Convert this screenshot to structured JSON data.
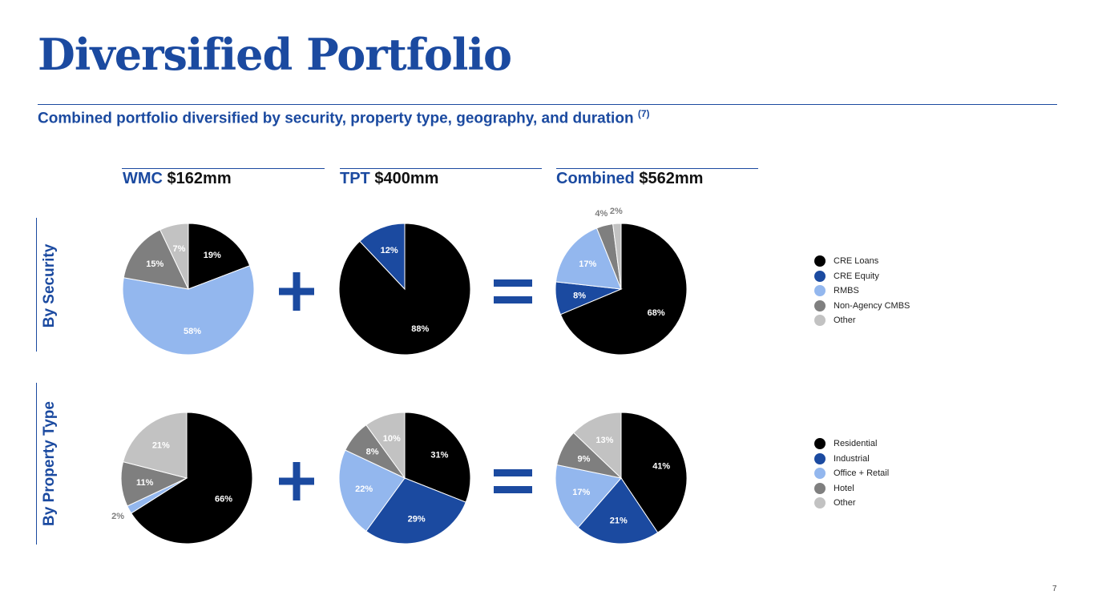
{
  "title": "Diversified Portfolio",
  "subtitle": "Combined portfolio diversified by security, property type, geography, and duration",
  "subtitle_note": "(7)",
  "columns": [
    {
      "label": "WMC",
      "amount": "$162mm"
    },
    {
      "label": "TPT",
      "amount": "$400mm"
    },
    {
      "label": "Combined",
      "amount": "$562mm"
    }
  ],
  "rows": [
    {
      "label": "By Security"
    },
    {
      "label": "By Property Type"
    }
  ],
  "operators": {
    "plus": "+",
    "equals": "="
  },
  "legends": {
    "security": [
      {
        "name": "CRE Loans",
        "color": "#000000"
      },
      {
        "name": "CRE Equity",
        "color": "#1b4aa0"
      },
      {
        "name": "RMBS",
        "color": "#93b7ee"
      },
      {
        "name": "Non-Agency CMBS",
        "color": "#7f7f7f"
      },
      {
        "name": "Other",
        "color": "#c2c2c2"
      }
    ],
    "property": [
      {
        "name": "Residential",
        "color": "#000000"
      },
      {
        "name": "Industrial",
        "color": "#1b4aa0"
      },
      {
        "name": "Office + Retail",
        "color": "#93b7ee"
      },
      {
        "name": "Hotel",
        "color": "#7f7f7f"
      },
      {
        "name": "Other",
        "color": "#c2c2c2"
      }
    ]
  },
  "chart_data": [
    {
      "type": "pie",
      "group": "security",
      "column": "WMC",
      "categories": [
        "CRE Loans",
        "CRE Equity",
        "RMBS",
        "Non-Agency CMBS",
        "Other"
      ],
      "values": [
        19,
        0,
        58,
        15,
        7
      ],
      "labels": [
        "19%",
        "",
        "58%",
        "15%",
        "7%"
      ]
    },
    {
      "type": "pie",
      "group": "security",
      "column": "TPT",
      "categories": [
        "CRE Loans",
        "CRE Equity",
        "RMBS",
        "Non-Agency CMBS",
        "Other"
      ],
      "values": [
        88,
        12,
        0,
        0,
        0
      ],
      "labels": [
        "88%",
        "12%",
        "",
        "",
        ""
      ]
    },
    {
      "type": "pie",
      "group": "security",
      "column": "Combined",
      "categories": [
        "CRE Loans",
        "CRE Equity",
        "RMBS",
        "Non-Agency CMBS",
        "Other"
      ],
      "values": [
        68,
        8,
        17,
        4,
        2
      ],
      "labels": [
        "68%",
        "8%",
        "17%",
        "4%",
        "2%"
      ]
    },
    {
      "type": "pie",
      "group": "property",
      "column": "WMC",
      "categories": [
        "Residential",
        "Industrial",
        "Office + Retail",
        "Hotel",
        "Other"
      ],
      "values": [
        66,
        0,
        2,
        11,
        21
      ],
      "labels": [
        "66%",
        "",
        "2%",
        "11%",
        "21%"
      ]
    },
    {
      "type": "pie",
      "group": "property",
      "column": "TPT",
      "categories": [
        "Residential",
        "Industrial",
        "Office + Retail",
        "Hotel",
        "Other"
      ],
      "values": [
        31,
        29,
        22,
        8,
        10
      ],
      "labels": [
        "31%",
        "29%",
        "22%",
        "8%",
        "10%"
      ]
    },
    {
      "type": "pie",
      "group": "property",
      "column": "Combined",
      "categories": [
        "Residential",
        "Industrial",
        "Office + Retail",
        "Hotel",
        "Other"
      ],
      "values": [
        41,
        21,
        17,
        9,
        13
      ],
      "labels": [
        "41%",
        "21%",
        "17%",
        "9%",
        "13%"
      ]
    }
  ],
  "page_number": "7"
}
